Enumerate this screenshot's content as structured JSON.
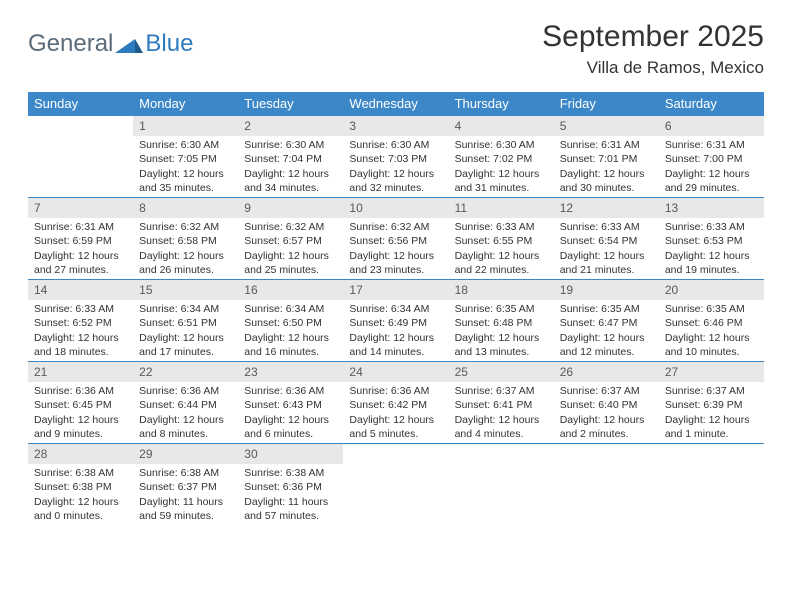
{
  "logo": {
    "text1": "General",
    "text2": "Blue"
  },
  "title": "September 2025",
  "location": "Villa de Ramos, Mexico",
  "header_color": "#3b87c8",
  "daynum_bg": "#e8e8e8",
  "columns": [
    "Sunday",
    "Monday",
    "Tuesday",
    "Wednesday",
    "Thursday",
    "Friday",
    "Saturday"
  ],
  "weeks": [
    [
      {
        "n": "",
        "sr": "",
        "ss": "",
        "dl": ""
      },
      {
        "n": "1",
        "sr": "6:30 AM",
        "ss": "7:05 PM",
        "dl": "12 hours and 35 minutes."
      },
      {
        "n": "2",
        "sr": "6:30 AM",
        "ss": "7:04 PM",
        "dl": "12 hours and 34 minutes."
      },
      {
        "n": "3",
        "sr": "6:30 AM",
        "ss": "7:03 PM",
        "dl": "12 hours and 32 minutes."
      },
      {
        "n": "4",
        "sr": "6:30 AM",
        "ss": "7:02 PM",
        "dl": "12 hours and 31 minutes."
      },
      {
        "n": "5",
        "sr": "6:31 AM",
        "ss": "7:01 PM",
        "dl": "12 hours and 30 minutes."
      },
      {
        "n": "6",
        "sr": "6:31 AM",
        "ss": "7:00 PM",
        "dl": "12 hours and 29 minutes."
      }
    ],
    [
      {
        "n": "7",
        "sr": "6:31 AM",
        "ss": "6:59 PM",
        "dl": "12 hours and 27 minutes."
      },
      {
        "n": "8",
        "sr": "6:32 AM",
        "ss": "6:58 PM",
        "dl": "12 hours and 26 minutes."
      },
      {
        "n": "9",
        "sr": "6:32 AM",
        "ss": "6:57 PM",
        "dl": "12 hours and 25 minutes."
      },
      {
        "n": "10",
        "sr": "6:32 AM",
        "ss": "6:56 PM",
        "dl": "12 hours and 23 minutes."
      },
      {
        "n": "11",
        "sr": "6:33 AM",
        "ss": "6:55 PM",
        "dl": "12 hours and 22 minutes."
      },
      {
        "n": "12",
        "sr": "6:33 AM",
        "ss": "6:54 PM",
        "dl": "12 hours and 21 minutes."
      },
      {
        "n": "13",
        "sr": "6:33 AM",
        "ss": "6:53 PM",
        "dl": "12 hours and 19 minutes."
      }
    ],
    [
      {
        "n": "14",
        "sr": "6:33 AM",
        "ss": "6:52 PM",
        "dl": "12 hours and 18 minutes."
      },
      {
        "n": "15",
        "sr": "6:34 AM",
        "ss": "6:51 PM",
        "dl": "12 hours and 17 minutes."
      },
      {
        "n": "16",
        "sr": "6:34 AM",
        "ss": "6:50 PM",
        "dl": "12 hours and 16 minutes."
      },
      {
        "n": "17",
        "sr": "6:34 AM",
        "ss": "6:49 PM",
        "dl": "12 hours and 14 minutes."
      },
      {
        "n": "18",
        "sr": "6:35 AM",
        "ss": "6:48 PM",
        "dl": "12 hours and 13 minutes."
      },
      {
        "n": "19",
        "sr": "6:35 AM",
        "ss": "6:47 PM",
        "dl": "12 hours and 12 minutes."
      },
      {
        "n": "20",
        "sr": "6:35 AM",
        "ss": "6:46 PM",
        "dl": "12 hours and 10 minutes."
      }
    ],
    [
      {
        "n": "21",
        "sr": "6:36 AM",
        "ss": "6:45 PM",
        "dl": "12 hours and 9 minutes."
      },
      {
        "n": "22",
        "sr": "6:36 AM",
        "ss": "6:44 PM",
        "dl": "12 hours and 8 minutes."
      },
      {
        "n": "23",
        "sr": "6:36 AM",
        "ss": "6:43 PM",
        "dl": "12 hours and 6 minutes."
      },
      {
        "n": "24",
        "sr": "6:36 AM",
        "ss": "6:42 PM",
        "dl": "12 hours and 5 minutes."
      },
      {
        "n": "25",
        "sr": "6:37 AM",
        "ss": "6:41 PM",
        "dl": "12 hours and 4 minutes."
      },
      {
        "n": "26",
        "sr": "6:37 AM",
        "ss": "6:40 PM",
        "dl": "12 hours and 2 minutes."
      },
      {
        "n": "27",
        "sr": "6:37 AM",
        "ss": "6:39 PM",
        "dl": "12 hours and 1 minute."
      }
    ],
    [
      {
        "n": "28",
        "sr": "6:38 AM",
        "ss": "6:38 PM",
        "dl": "12 hours and 0 minutes."
      },
      {
        "n": "29",
        "sr": "6:38 AM",
        "ss": "6:37 PM",
        "dl": "11 hours and 59 minutes."
      },
      {
        "n": "30",
        "sr": "6:38 AM",
        "ss": "6:36 PM",
        "dl": "11 hours and 57 minutes."
      },
      {
        "n": "",
        "sr": "",
        "ss": "",
        "dl": ""
      },
      {
        "n": "",
        "sr": "",
        "ss": "",
        "dl": ""
      },
      {
        "n": "",
        "sr": "",
        "ss": "",
        "dl": ""
      },
      {
        "n": "",
        "sr": "",
        "ss": "",
        "dl": ""
      }
    ]
  ],
  "labels": {
    "sunrise": "Sunrise: ",
    "sunset": "Sunset: ",
    "daylight": "Daylight: "
  }
}
